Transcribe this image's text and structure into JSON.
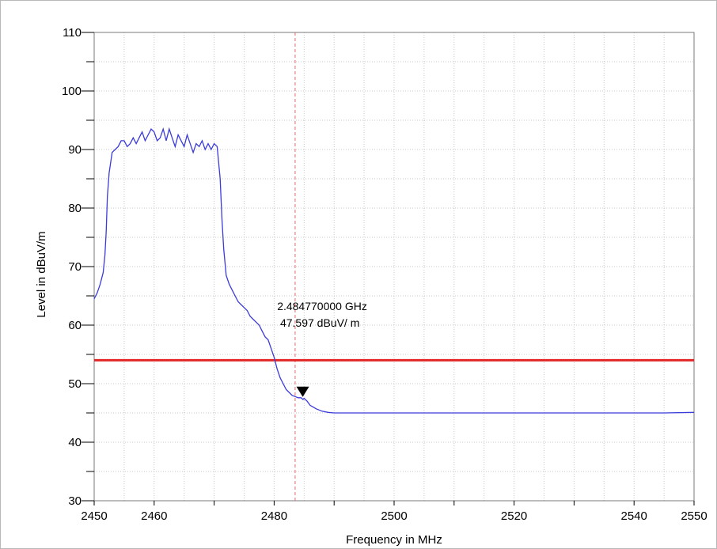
{
  "chart_data": {
    "type": "line",
    "title": "",
    "xlabel": "Frequency in MHz",
    "ylabel": "Level in dBuV/m",
    "xlim": [
      2450,
      2550
    ],
    "ylim": [
      30,
      110
    ],
    "x_ticks": [
      2450,
      2460,
      2480,
      2500,
      2520,
      2540,
      2550
    ],
    "y_ticks": [
      30,
      40,
      50,
      60,
      70,
      80,
      90,
      100,
      110
    ],
    "grid": true,
    "colors": {
      "trace": "#3b3bd9",
      "limit": "#e32626",
      "marker_line": "#e26a6a",
      "grid": "#c8c8c8"
    },
    "series": [
      {
        "x": [
          2450,
          2450.5,
          2451,
          2451.5,
          2451.8,
          2452,
          2452.2,
          2452.5,
          2453,
          2453.5,
          2454,
          2454.5,
          2455,
          2455.5,
          2456,
          2456.5,
          2457,
          2457.5,
          2458,
          2458.5,
          2459,
          2459.5,
          2460,
          2460.5,
          2461,
          2461.5,
          2462,
          2462.5,
          2463,
          2463.5,
          2464,
          2464.5,
          2465,
          2465.5,
          2466,
          2466.5,
          2467,
          2467.5,
          2468,
          2468.5,
          2469,
          2469.5,
          2470,
          2470.5,
          2471,
          2471.3,
          2471.6,
          2472,
          2472.5,
          2473,
          2473.5,
          2474,
          2474.5,
          2475,
          2475.5,
          2476,
          2476.5,
          2477,
          2477.5,
          2478,
          2478.5,
          2479,
          2479.5,
          2480,
          2480.5,
          2481,
          2481.5,
          2482,
          2482.5,
          2483,
          2483.5,
          2484,
          2484.5,
          2484.8,
          2485,
          2485.5,
          2486,
          2486.5,
          2487,
          2487.5,
          2488,
          2489,
          2490,
          2492,
          2495,
          2500,
          2505,
          2510,
          2515,
          2520,
          2525,
          2530,
          2535,
          2540,
          2545,
          2550
        ],
        "y": [
          64.5,
          65.5,
          67,
          69,
          72,
          76,
          82,
          86,
          89.5,
          90,
          90.5,
          91.5,
          91.5,
          90.5,
          91,
          92,
          91,
          92,
          93,
          91.5,
          92.5,
          93.5,
          93,
          91.5,
          92,
          93.5,
          91.5,
          93.5,
          92,
          90.5,
          92.5,
          91.5,
          90.5,
          92.5,
          91,
          89.5,
          91,
          90.5,
          91.5,
          90,
          91,
          90,
          91,
          90.5,
          85,
          78,
          73,
          68.5,
          67,
          66,
          65,
          64,
          63.5,
          63,
          62.5,
          61.5,
          61,
          60.5,
          60,
          59,
          58,
          57.5,
          56,
          54.5,
          52.5,
          51,
          50,
          49,
          48.5,
          48,
          47.8,
          47.6,
          47.6,
          47.3,
          47.5,
          47,
          46.3,
          46,
          45.7,
          45.5,
          45.3,
          45.1,
          45.0,
          45.0,
          45.0,
          45.0,
          45.0,
          45.0,
          45.0,
          45.0,
          45.0,
          45.0,
          45.0,
          45.0,
          45.0,
          45.1
        ]
      }
    ],
    "limit_line": 54,
    "marker": {
      "x": 2484.77,
      "y": 47.597,
      "readout_freq": "2.484770000 GHz",
      "readout_level": "47.597 dBuV/ m"
    },
    "vertical_marker_x": 2483.5
  }
}
